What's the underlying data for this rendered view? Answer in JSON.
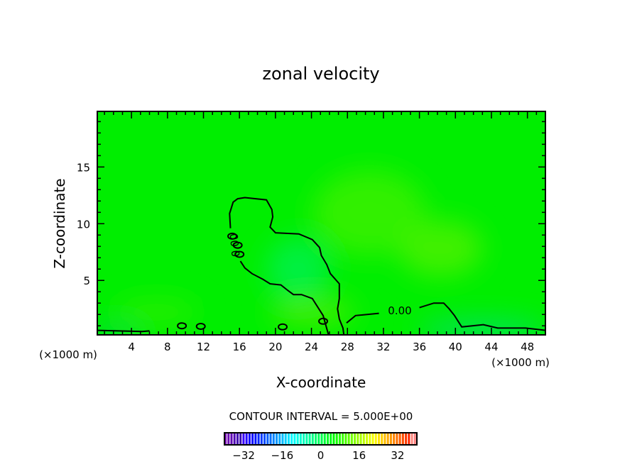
{
  "chart_data": {
    "type": "contour",
    "title": "zonal velocity",
    "xlabel": "X-coordinate",
    "ylabel": "Z-coordinate",
    "x_unit_label": "(×1000 m)",
    "x_unit_label_right": "(×1000 m)",
    "xlim": [
      0.2,
      50
    ],
    "ylim": [
      0.2,
      19.9
    ],
    "xticks": [
      4,
      8,
      12,
      16,
      20,
      24,
      28,
      32,
      36,
      40,
      44,
      48
    ],
    "yticks": [
      5,
      10,
      15
    ],
    "contour_interval_label": "CONTOUR INTERVAL = 5.000E+00",
    "contour_level_label": "0.00",
    "field_color": "#00ee00",
    "colorbar": {
      "range": [
        -40,
        40
      ],
      "ticks": [
        -32,
        -16,
        0,
        16,
        32
      ],
      "colormap": "rainbow purple-blue-cyan-green-yellow-red-pink"
    },
    "contours": [
      {
        "level": 0,
        "points": [
          [
            25.9,
            0.2
          ],
          [
            25.3,
            1.9
          ],
          [
            24.1,
            3.4
          ],
          [
            22.9,
            3.75
          ],
          [
            22.0,
            3.75
          ],
          [
            21.4,
            4.1
          ],
          [
            20.6,
            4.6
          ],
          [
            19.4,
            4.7
          ],
          [
            18.6,
            5.1
          ],
          [
            17.4,
            5.6
          ],
          [
            16.6,
            6.1
          ],
          [
            16.1,
            6.7
          ]
        ]
      },
      {
        "level": 0,
        "points": [
          [
            15.0,
            9.6
          ],
          [
            14.9,
            10.9
          ],
          [
            15.3,
            11.9
          ],
          [
            15.8,
            12.2
          ],
          [
            16.6,
            12.3
          ],
          [
            19.0,
            12.1
          ],
          [
            19.6,
            11.25
          ],
          [
            19.7,
            10.6
          ],
          [
            19.4,
            9.7
          ],
          [
            20.0,
            9.2
          ],
          [
            22.6,
            9.1
          ],
          [
            24.1,
            8.6
          ],
          [
            24.9,
            7.9
          ],
          [
            25.1,
            7.2
          ],
          [
            25.7,
            6.4
          ],
          [
            26.1,
            5.6
          ],
          [
            27.1,
            4.7
          ],
          [
            27.1,
            3.4
          ],
          [
            26.9,
            2.5
          ],
          [
            27.1,
            1.6
          ],
          [
            27.5,
            0.8
          ],
          [
            27.6,
            0.2
          ]
        ]
      },
      {
        "level": 0,
        "points": [
          [
            27.9,
            1.25
          ],
          [
            28.9,
            1.9
          ],
          [
            31.5,
            2.1
          ]
        ]
      },
      {
        "level": 0,
        "points": [
          [
            36.0,
            2.6
          ],
          [
            37.6,
            3.0
          ],
          [
            38.7,
            3.0
          ],
          [
            39.3,
            2.5
          ],
          [
            39.9,
            1.9
          ],
          [
            40.7,
            0.9
          ],
          [
            43.1,
            1.1
          ],
          [
            44.7,
            0.8
          ],
          [
            47.8,
            0.8
          ],
          [
            50,
            0.6
          ]
        ]
      },
      {
        "level": 0,
        "points": [
          [
            0.2,
            0.6
          ],
          [
            5.2,
            0.5
          ],
          [
            6.0,
            0.55
          ]
        ]
      }
    ],
    "contour_loops": [
      [
        9.6,
        1.0
      ],
      [
        11.7,
        0.95
      ],
      [
        15.2,
        8.9
      ],
      [
        15.8,
        8.1
      ],
      [
        16.0,
        7.3
      ],
      [
        20.8,
        0.9
      ],
      [
        25.3,
        1.4
      ]
    ]
  }
}
